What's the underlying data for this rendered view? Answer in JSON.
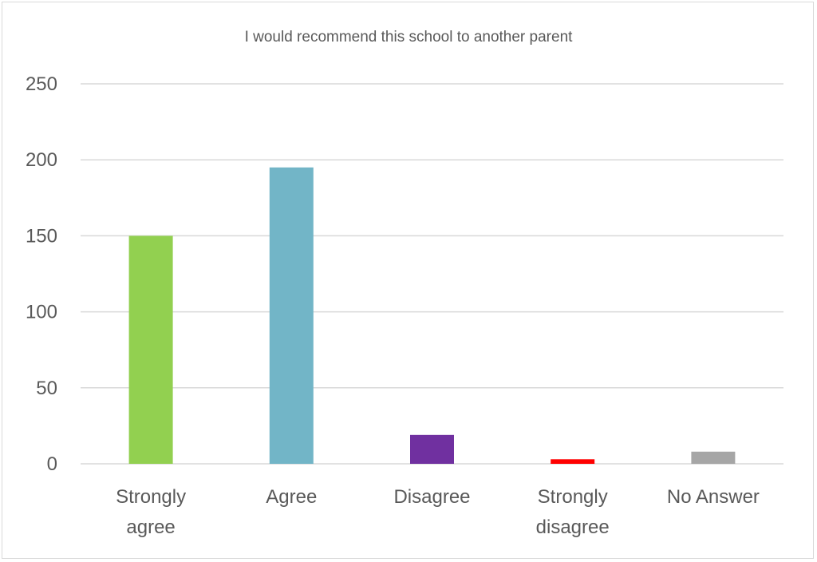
{
  "chart_data": {
    "type": "bar",
    "title": "I would recommend this school to another parent",
    "categories": [
      "Strongly agree",
      "Agree",
      "Disagree",
      "Strongly disagree",
      "No Answer"
    ],
    "category_lines": [
      [
        "Strongly",
        "agree"
      ],
      [
        "Agree"
      ],
      [
        "Disagree"
      ],
      [
        "Strongly",
        "disagree"
      ],
      [
        "No Answer"
      ]
    ],
    "values": [
      150,
      195,
      19,
      3,
      8
    ],
    "colors": [
      "#92d050",
      "#72b5c7",
      "#7030a0",
      "#ff0000",
      "#a6a6a6"
    ],
    "xlabel": "",
    "ylabel": "",
    "ylim": [
      0,
      250
    ],
    "yticks": [
      0,
      50,
      100,
      150,
      200,
      250
    ],
    "grid": true,
    "legend": "none"
  }
}
